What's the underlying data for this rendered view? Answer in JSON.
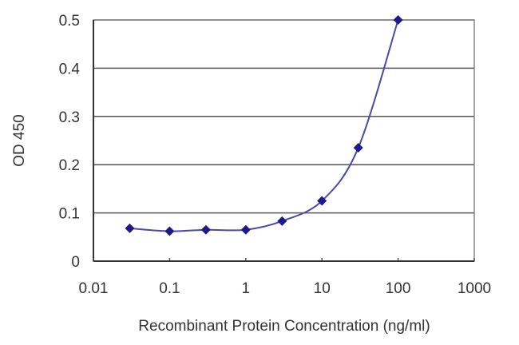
{
  "chart_data": {
    "type": "line",
    "title": "",
    "xlabel": "Recombinant Protein Concentration (ng/ml)",
    "ylabel": "OD 450",
    "xscale": "log",
    "xlim": [
      0.01,
      1000
    ],
    "ylim": [
      0,
      0.5
    ],
    "x_ticks": [
      "0.01",
      "0.1",
      "1",
      "10",
      "100",
      "1000"
    ],
    "y_ticks": [
      "0",
      "0.1",
      "0.2",
      "0.3",
      "0.4",
      "0.5"
    ],
    "grid": "horizontal",
    "legend": "none",
    "series": [
      {
        "name": "OD 450",
        "color": "#1a1a8c",
        "marker": "diamond",
        "x": [
          0.03,
          0.1,
          0.3,
          1,
          3,
          10,
          30,
          100
        ],
        "y": [
          0.068,
          0.062,
          0.065,
          0.065,
          0.083,
          0.125,
          0.235,
          0.5
        ]
      }
    ]
  }
}
